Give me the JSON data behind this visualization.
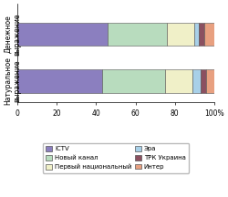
{
  "bars": [
    {
      "label": "Денежное\nвыражение",
      "segments": [
        {
          "name": "ICTV",
          "value": 46,
          "color": "#8B7FBF"
        },
        {
          "name": "Новый канал",
          "value": 30,
          "color": "#B8DCBE"
        },
        {
          "name": "Первый национальный",
          "value": 14,
          "color": "#F0F0C8"
        },
        {
          "name": "Эра",
          "value": 2,
          "color": "#A8D0E8"
        },
        {
          "name": "ТРК Украина",
          "value": 3,
          "color": "#8B5060"
        },
        {
          "name": "Интер",
          "value": 5,
          "color": "#E8A080"
        }
      ]
    },
    {
      "label": "Натуральное\nвыражение",
      "segments": [
        {
          "name": "ICTV",
          "value": 43,
          "color": "#8B7FBF"
        },
        {
          "name": "Новый канал",
          "value": 32,
          "color": "#B8DCBE"
        },
        {
          "name": "Первый национальный",
          "value": 14,
          "color": "#F0F0C8"
        },
        {
          "name": "Эра",
          "value": 4,
          "color": "#A8D0E8"
        },
        {
          "name": "ТРК Украина",
          "value": 3,
          "color": "#8B5060"
        },
        {
          "name": "Интер",
          "value": 4,
          "color": "#E8A080"
        }
      ]
    }
  ],
  "legend": [
    {
      "name": "ICTV",
      "color": "#8B7FBF"
    },
    {
      "name": "Новый канал",
      "color": "#B8DCBE"
    },
    {
      "name": "Первый национальный",
      "color": "#F0F0C8"
    },
    {
      "name": "Эра",
      "color": "#A8D0E8"
    },
    {
      "name": "ТРК Украина",
      "color": "#8B5060"
    },
    {
      "name": "Интер",
      "color": "#E8A080"
    }
  ],
  "xlim": [
    0,
    100
  ],
  "xticks": [
    0,
    20,
    40,
    60,
    80,
    100
  ],
  "xlabel_suffix": "%",
  "background_color": "#ffffff",
  "bar_height": 0.5,
  "figsize": [
    2.5,
    2.16
  ],
  "dpi": 100
}
